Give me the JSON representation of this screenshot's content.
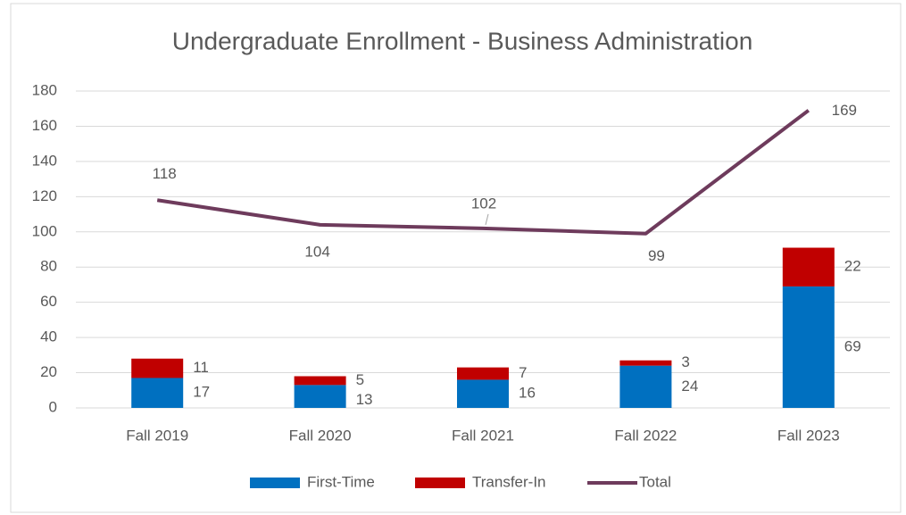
{
  "chart_data": {
    "type": "combo",
    "title": "Undergraduate Enrollment - Business Administration",
    "categories": [
      "Fall 2019",
      "Fall 2020",
      "Fall 2021",
      "Fall 2022",
      "Fall 2023"
    ],
    "series": [
      {
        "name": "First-Time",
        "type": "bar",
        "color": "#0070c0",
        "values": [
          17,
          13,
          16,
          24,
          69
        ]
      },
      {
        "name": "Transfer-In",
        "type": "bar",
        "color": "#c00000",
        "values": [
          11,
          5,
          7,
          3,
          22
        ]
      },
      {
        "name": "Total",
        "type": "line",
        "color": "#6e3b5c",
        "values": [
          118,
          104,
          102,
          99,
          169
        ]
      }
    ],
    "stacked": true,
    "ylim": [
      0,
      180
    ],
    "yticks": [
      0,
      20,
      40,
      60,
      80,
      100,
      120,
      140,
      160,
      180
    ],
    "grid": true,
    "legend": "bottom"
  }
}
